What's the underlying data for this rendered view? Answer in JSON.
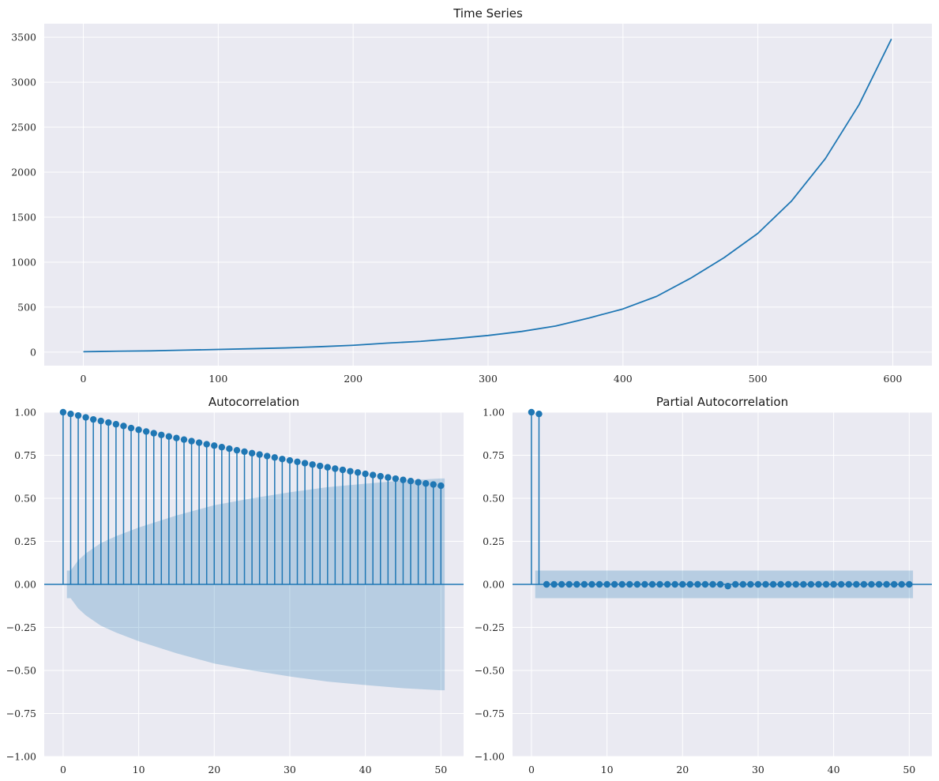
{
  "chart_data": [
    {
      "type": "line",
      "title": "Time Series",
      "xlabel": "",
      "ylabel": "",
      "xlim": [
        -29,
        629
      ],
      "ylim": [
        -150,
        3650
      ],
      "xticks": [
        0,
        100,
        200,
        300,
        400,
        500,
        600
      ],
      "yticks": [
        0,
        500,
        1000,
        1500,
        2000,
        2500,
        3000,
        3500
      ],
      "xtick_labels": [
        "0",
        "100",
        "200",
        "300",
        "400",
        "500",
        "600"
      ],
      "ytick_labels": [
        "0",
        "500",
        "1000",
        "1500",
        "2000",
        "2500",
        "3000",
        "3500"
      ],
      "grid": true,
      "line_color": "#1f77b4",
      "x": [
        0,
        25,
        50,
        75,
        100,
        125,
        150,
        175,
        200,
        225,
        250,
        275,
        300,
        325,
        350,
        375,
        400,
        425,
        450,
        475,
        500,
        525,
        550,
        575,
        599
      ],
      "y": [
        5,
        10,
        14,
        22,
        30,
        38,
        47,
        60,
        76,
        100,
        120,
        150,
        185,
        230,
        290,
        380,
        480,
        620,
        820,
        1050,
        1320,
        1680,
        2150,
        2750,
        3480
      ]
    },
    {
      "type": "stem",
      "title": "Autocorrelation",
      "xlabel": "",
      "ylabel": "",
      "xlim": [
        -2.5,
        53
      ],
      "ylim": [
        -1.0,
        1.0
      ],
      "xticks": [
        0,
        10,
        20,
        30,
        40,
        50
      ],
      "yticks": [
        -1.0,
        -0.75,
        -0.5,
        -0.25,
        0.0,
        0.25,
        0.5,
        0.75,
        1.0
      ],
      "xtick_labels": [
        "0",
        "10",
        "20",
        "30",
        "40",
        "50"
      ],
      "ytick_labels": [
        "−1.00",
        "−0.75",
        "−0.50",
        "−0.25",
        "0.00",
        "0.25",
        "0.50",
        "0.75",
        "1.00"
      ],
      "grid": true,
      "stem_color": "#1f77b4",
      "confidence_color": "#1f77b4",
      "lags": [
        0,
        1,
        2,
        3,
        4,
        5,
        6,
        7,
        8,
        9,
        10,
        11,
        12,
        13,
        14,
        15,
        16,
        17,
        18,
        19,
        20,
        21,
        22,
        23,
        24,
        25,
        26,
        27,
        28,
        29,
        30,
        31,
        32,
        33,
        34,
        35,
        36,
        37,
        38,
        39,
        40,
        41,
        42,
        43,
        44,
        45,
        46,
        47,
        48,
        49,
        50
      ],
      "values": [
        1.0,
        0.99,
        0.981,
        0.97,
        0.958,
        0.949,
        0.94,
        0.93,
        0.92,
        0.908,
        0.898,
        0.888,
        0.878,
        0.868,
        0.859,
        0.85,
        0.841,
        0.832,
        0.823,
        0.814,
        0.806,
        0.797,
        0.788,
        0.779,
        0.771,
        0.762,
        0.754,
        0.745,
        0.737,
        0.728,
        0.72,
        0.712,
        0.704,
        0.696,
        0.688,
        0.68,
        0.672,
        0.665,
        0.657,
        0.65,
        0.642,
        0.635,
        0.628,
        0.621,
        0.614,
        0.607,
        0.6,
        0.593,
        0.586,
        0.58,
        0.573
      ],
      "confidence_band": {
        "lags": [
          0.5,
          1,
          2,
          3,
          5,
          7,
          10,
          15,
          20,
          25,
          30,
          35,
          40,
          45,
          50,
          50.5
        ],
        "upper": [
          0.08,
          0.08,
          0.14,
          0.18,
          0.24,
          0.28,
          0.33,
          0.4,
          0.46,
          0.5,
          0.535,
          0.565,
          0.585,
          0.603,
          0.615,
          0.615
        ]
      }
    },
    {
      "type": "stem",
      "title": "Partial Autocorrelation",
      "xlabel": "",
      "ylabel": "",
      "xlim": [
        -2.5,
        53
      ],
      "ylim": [
        -1.0,
        1.0
      ],
      "xticks": [
        0,
        10,
        20,
        30,
        40,
        50
      ],
      "yticks": [
        -1.0,
        -0.75,
        -0.5,
        -0.25,
        0.0,
        0.25,
        0.5,
        0.75,
        1.0
      ],
      "xtick_labels": [
        "0",
        "10",
        "20",
        "30",
        "40",
        "50"
      ],
      "ytick_labels": [
        "−1.00",
        "−0.75",
        "−0.50",
        "−0.25",
        "0.00",
        "0.25",
        "0.50",
        "0.75",
        "1.00"
      ],
      "grid": true,
      "stem_color": "#1f77b4",
      "confidence_color": "#1f77b4",
      "lags": [
        0,
        1,
        2,
        3,
        4,
        5,
        6,
        7,
        8,
        9,
        10,
        11,
        12,
        13,
        14,
        15,
        16,
        17,
        18,
        19,
        20,
        21,
        22,
        23,
        24,
        25,
        26,
        27,
        28,
        29,
        30,
        31,
        32,
        33,
        34,
        35,
        36,
        37,
        38,
        39,
        40,
        41,
        42,
        43,
        44,
        45,
        46,
        47,
        48,
        49,
        50
      ],
      "values": [
        1.0,
        0.99,
        0.0,
        0.0,
        0.0,
        0.0,
        0.0,
        0.0,
        0.0,
        0.0,
        0.0,
        0.0,
        0.0,
        0.0,
        0.0,
        0.0,
        0.0,
        0.0,
        0.0,
        0.0,
        0.0,
        0.0,
        0.0,
        0.0,
        0.0,
        0.0,
        -0.01,
        0.0,
        0.0,
        0.0,
        0.0,
        0.0,
        0.0,
        0.0,
        0.0,
        0.0,
        0.0,
        0.0,
        0.0,
        0.0,
        0.0,
        0.0,
        0.0,
        0.0,
        0.0,
        0.0,
        0.0,
        0.0,
        0.0,
        0.0,
        0.0
      ],
      "confidence_band": {
        "lags": [
          0.5,
          50.5
        ],
        "upper": [
          0.08,
          0.08
        ]
      }
    }
  ]
}
